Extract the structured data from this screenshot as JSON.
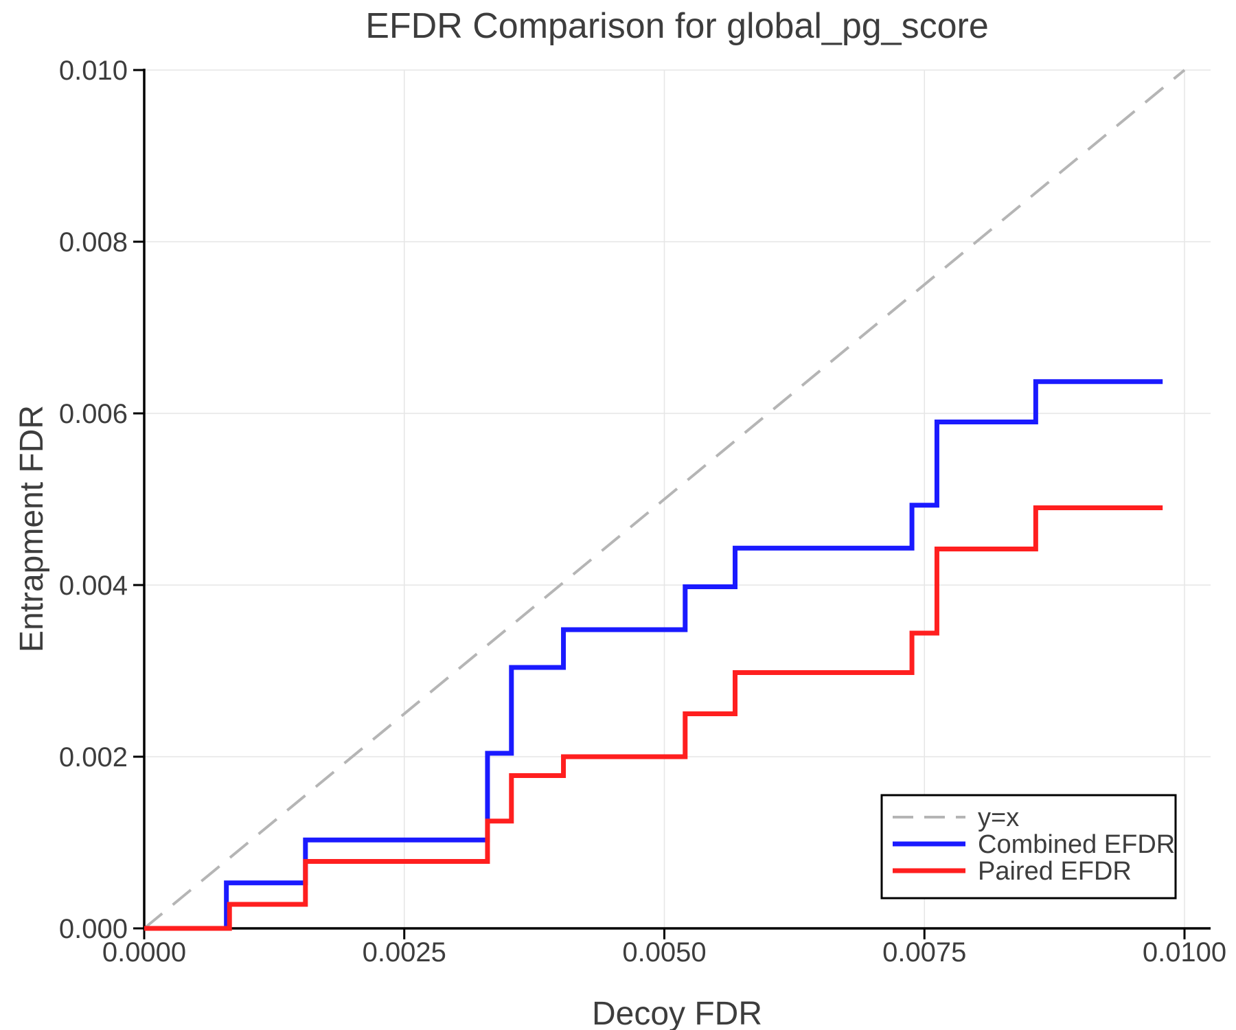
{
  "page": {
    "background": "#ffffff"
  },
  "chart_data": {
    "type": "line",
    "subtype": "step-post",
    "title": "EFDR Comparison for global_pg_score",
    "xlabel": "Decoy FDR",
    "ylabel": "Entrapment FDR",
    "xlim": [
      0,
      0.01025
    ],
    "ylim": [
      0,
      0.01
    ],
    "grid": true,
    "grid_color": "#e6e6e6",
    "axis_color": "#000000",
    "text_color": "#3d3d3d",
    "x_ticks": [
      0,
      0.0025,
      0.005,
      0.0075,
      0.01
    ],
    "x_tick_labels": [
      "0.0000",
      "0.0025",
      "0.0050",
      "0.0075",
      "0.0100"
    ],
    "y_ticks": [
      0,
      0.002,
      0.004,
      0.006,
      0.008,
      0.01
    ],
    "y_tick_labels": [
      "0.000",
      "0.002",
      "0.004",
      "0.006",
      "0.008",
      "0.010"
    ],
    "legend": {
      "position": "lower right",
      "entries": [
        "y=x",
        "Combined EFDR",
        "Paired EFDR"
      ]
    },
    "reference_line": {
      "label": "y=x",
      "style": "dashed",
      "color": "#b5b5b5",
      "from": [
        0,
        0
      ],
      "to": [
        0.01,
        0.01
      ]
    },
    "series": [
      {
        "name": "Combined EFDR",
        "color": "#1a1aff",
        "style": "solid",
        "x": [
          0,
          0.00079,
          0.00155,
          0.0033,
          0.00353,
          0.00403,
          0.0052,
          0.00568,
          0.00738,
          0.00762,
          0.00857,
          0.00979
        ],
        "y": [
          0,
          0.00053,
          0.00103,
          0.00204,
          0.00304,
          0.00348,
          0.00398,
          0.00443,
          0.00493,
          0.0059,
          0.00637,
          0.00637
        ]
      },
      {
        "name": "Paired EFDR",
        "color": "#ff1f1f",
        "style": "solid",
        "x": [
          0,
          0.00082,
          0.00155,
          0.0033,
          0.00353,
          0.00403,
          0.0052,
          0.00568,
          0.00738,
          0.00762,
          0.00857,
          0.00979
        ],
        "y": [
          0,
          0.00028,
          0.00078,
          0.00125,
          0.00178,
          0.002,
          0.0025,
          0.00298,
          0.00344,
          0.00442,
          0.0049,
          0.0049
        ]
      }
    ]
  }
}
